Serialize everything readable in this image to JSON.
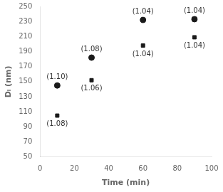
{
  "chart_data": {
    "type": "scatter",
    "x_label": "Time (min)",
    "y_label": "Dₗ (nm)",
    "x": [
      10,
      30,
      60,
      90
    ],
    "series": [
      {
        "marker": "circle",
        "color": "#1a1a1a",
        "values": [
          145,
          182,
          232,
          233
        ]
      },
      {
        "marker": "square",
        "color": "#1a1a1a",
        "values": [
          105,
          152,
          198,
          209
        ]
      }
    ],
    "annotations": [
      {
        "text": "(1.10)",
        "x": 10,
        "y": 145
      },
      {
        "text": "(1.08)",
        "x": 30,
        "y": 182
      },
      {
        "text": "(1.04)",
        "x": 60,
        "y": 232
      },
      {
        "text": "(1.04)",
        "x": 90,
        "y": 233
      },
      {
        "text": "(1.08)",
        "x": 10,
        "y": 105
      },
      {
        "text": "(1.06)",
        "x": 30,
        "y": 152
      },
      {
        "text": "(1.04)",
        "x": 60,
        "y": 198
      },
      {
        "text": "(1.04)",
        "x": 90,
        "y": 209
      }
    ],
    "xlim": [
      0,
      100
    ],
    "ylim": [
      50,
      250
    ],
    "xticks": [
      0,
      20,
      40,
      60,
      80,
      100
    ],
    "yticks": [
      50,
      70,
      90,
      110,
      130,
      150,
      170,
      190,
      210,
      230,
      250
    ],
    "grid": false
  }
}
